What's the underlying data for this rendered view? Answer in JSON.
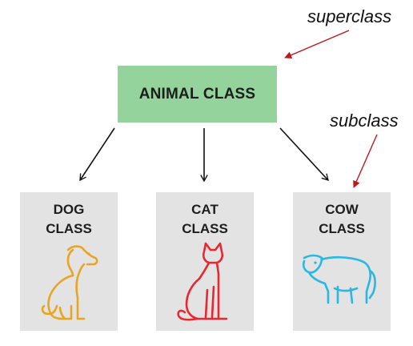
{
  "superclass_label": "superclass",
  "subclass_label": "subclass",
  "parent": {
    "title": "ANIMAL CLASS",
    "color": "#94d39b"
  },
  "children": [
    {
      "line1": "DOG",
      "line2": "CLASS",
      "icon": "dog-icon",
      "icon_color": "#e8a423"
    },
    {
      "line1": "CAT",
      "line2": "CLASS",
      "icon": "cat-icon",
      "icon_color": "#e8272e"
    },
    {
      "line1": "COW",
      "line2": "CLASS",
      "icon": "cow-icon",
      "icon_color": "#29b7e3"
    }
  ],
  "colors": {
    "callout_arrow": "#c0161f",
    "child_box": "#e3e3e3",
    "connector": "#111111"
  }
}
